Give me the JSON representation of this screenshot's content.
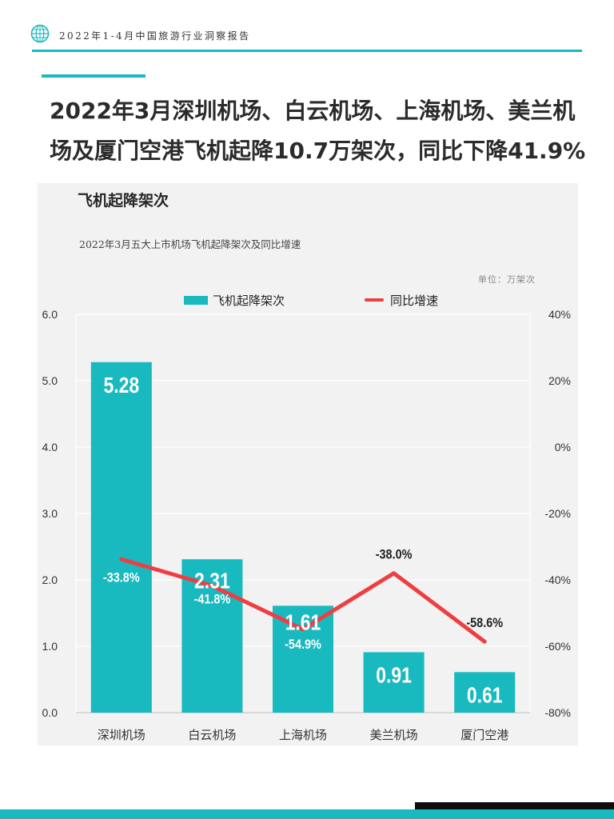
{
  "header": {
    "report_title": "2022年1-4月中国旅游行业洞察报告"
  },
  "headline": {
    "line1": "2022年3月深圳机场、白云机场、上海机场、美兰机",
    "line2": "场及厦门空港飞机起降10.7万架次，同比下降41.9%"
  },
  "colors": {
    "accent": "#19b9c0",
    "line": "#ef3e42",
    "panel": "#f2f2f2"
  },
  "chart_data": {
    "type": "bar",
    "title": "飞机起降架次",
    "subtitle": "2022年3月五大上市机场飞机起降架次及同比增速",
    "unit": "单位：万架次",
    "categories": [
      "深圳机场",
      "白云机场",
      "上海机场",
      "美兰机场",
      "厦门空港"
    ],
    "series": [
      {
        "name": "飞机起降架次",
        "type": "bar",
        "axis": "left",
        "values": [
          5.28,
          2.31,
          1.61,
          0.91,
          0.61
        ],
        "labels": [
          "5.28",
          "2.31",
          "1.61",
          "0.91",
          "0.61"
        ]
      },
      {
        "name": "同比增速",
        "type": "line",
        "axis": "right",
        "values": [
          -33.8,
          -41.8,
          -54.9,
          -38.0,
          -58.6
        ],
        "labels": [
          "-33.8%",
          "-41.8%",
          "-54.9%",
          "-38.0%",
          "-58.6%"
        ]
      }
    ],
    "y_left": {
      "min": 0,
      "max": 6,
      "ticks": [
        "0.0",
        "1.0",
        "2.0",
        "3.0",
        "4.0",
        "5.0",
        "6.0"
      ]
    },
    "y_right": {
      "min": -80,
      "max": 40,
      "ticks": [
        "-80%",
        "-60%",
        "-40%",
        "-20%",
        "0%",
        "20%",
        "40%"
      ]
    },
    "legend_position": "top-center",
    "grid": true
  }
}
